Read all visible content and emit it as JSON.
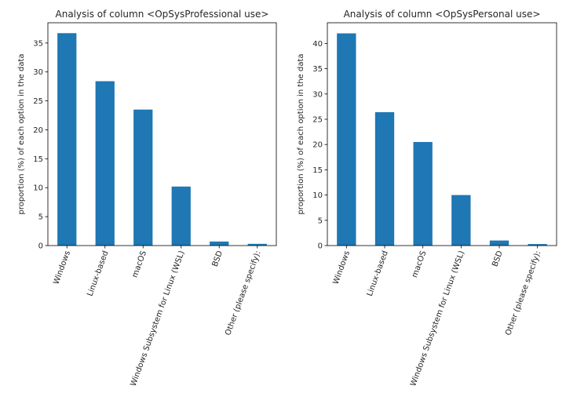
{
  "bar_color": "#1f77b4",
  "chart_data": [
    {
      "type": "bar",
      "title": "Analysis of column <OpSysProfessional use>",
      "xlabel": "",
      "ylabel": "proportion (%) of each option in the data",
      "categories": [
        "Windows",
        "Linux-based",
        "macOS",
        "Windows Subsystem for Linux (WSL)",
        "BSD",
        "Other (please specify):"
      ],
      "values": [
        36.7,
        28.4,
        23.5,
        10.2,
        0.7,
        0.3
      ],
      "ylim": [
        0,
        38.5
      ],
      "yticks": [
        0,
        5,
        10,
        15,
        20,
        25,
        30,
        35
      ],
      "grid": false,
      "legend": "none"
    },
    {
      "type": "bar",
      "title": "Analysis of column <OpSysPersonal use>",
      "xlabel": "",
      "ylabel": "proportion (%) of each option in the data",
      "categories": [
        "Windows",
        "Linux-based",
        "macOS",
        "Windows Subsystem for Linux (WSL)",
        "BSD",
        "Other (please specify):"
      ],
      "values": [
        42.0,
        26.4,
        20.5,
        10.0,
        1.0,
        0.3
      ],
      "ylim": [
        0,
        44.1
      ],
      "yticks": [
        0,
        5,
        10,
        15,
        20,
        25,
        30,
        35,
        40
      ],
      "grid": false,
      "legend": "none"
    }
  ]
}
